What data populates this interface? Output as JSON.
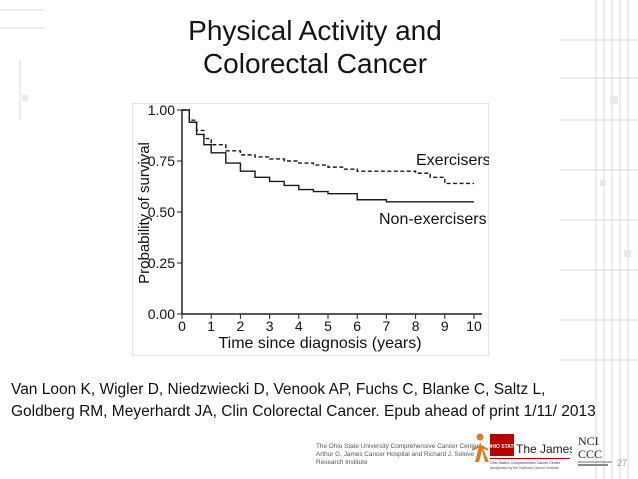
{
  "slide": {
    "title_line1": "Physical Activity and",
    "title_line2": "Colorectal Cancer",
    "citation_line1": "Van Loon K, Wigler D, Niedzwiecki D, Venook AP, Fuchs C, Blanke C, Saltz L,",
    "citation_line2": "Goldberg RM, Meyerhardt JA, Clin Colorectal Cancer. Epub ahead of print 1/11/ 2013",
    "footer_line1": "The Ohio State University Comprehensive Cancer Center –",
    "footer_line2": "Arthur G. James Cancer Hospital and Richard J. Solove",
    "footer_line3": "Research Institute",
    "logo_osu": "OHIO STATE",
    "logo_james": "The James",
    "logo_james_sub1": "Ohio State's Comprehensive Cancer Center",
    "logo_james_sub2": "designated by the National Cancer Institute",
    "logo_nci1": "NCI",
    "logo_nci2": "CCC",
    "slide_number": "27"
  },
  "chart_data": {
    "type": "line",
    "xlabel": "Time since diagnosis (years)",
    "ylabel": "Probability of survival",
    "xlim": [
      0,
      10
    ],
    "ylim": [
      0,
      1
    ],
    "x_ticks": [
      "0",
      "1",
      "2",
      "3",
      "4",
      "5",
      "6",
      "7",
      "8",
      "9",
      "10"
    ],
    "y_ticks": [
      "0.00",
      "0.25",
      "0.50",
      "0.75",
      "1.00"
    ],
    "series": [
      {
        "name": "Exercisers",
        "label": "Exercisers",
        "style": "dashed",
        "x": [
          0,
          0.25,
          0.5,
          0.75,
          1.0,
          1.5,
          2.0,
          2.5,
          3.0,
          3.5,
          4.0,
          4.5,
          5.0,
          5.5,
          6.0,
          7.0,
          8.0,
          8.5,
          9.0,
          10.0
        ],
        "y": [
          1.0,
          0.95,
          0.9,
          0.86,
          0.83,
          0.8,
          0.78,
          0.77,
          0.76,
          0.75,
          0.74,
          0.73,
          0.72,
          0.71,
          0.7,
          0.7,
          0.69,
          0.67,
          0.64,
          0.64
        ]
      },
      {
        "name": "Non-exercisers",
        "label": "Non-exercisers",
        "style": "solid",
        "x": [
          0,
          0.25,
          0.5,
          0.75,
          1.0,
          1.5,
          2.0,
          2.5,
          3.0,
          3.5,
          4.0,
          4.5,
          5.0,
          6.0,
          7.0,
          8.0,
          9.0,
          10.0
        ],
        "y": [
          1.0,
          0.94,
          0.88,
          0.83,
          0.79,
          0.74,
          0.7,
          0.67,
          0.65,
          0.63,
          0.61,
          0.6,
          0.59,
          0.56,
          0.55,
          0.55,
          0.55,
          0.55
        ]
      }
    ]
  }
}
